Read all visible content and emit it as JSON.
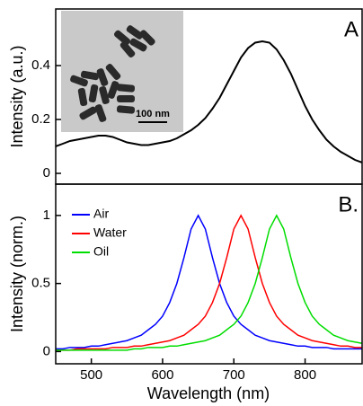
{
  "chart_data": [
    {
      "type": "line",
      "panel_label": "A",
      "ylabel": "Intensity (a.u.)",
      "inset_scale_label": "100 nm",
      "xlim": [
        450,
        880
      ],
      "ylim": [
        -0.04,
        0.61
      ],
      "yticks": [
        0,
        0.2,
        0.4
      ],
      "x": [
        450,
        460,
        470,
        480,
        490,
        500,
        510,
        520,
        530,
        540,
        550,
        560,
        570,
        580,
        590,
        600,
        610,
        620,
        630,
        640,
        650,
        660,
        670,
        680,
        690,
        700,
        710,
        720,
        730,
        740,
        750,
        760,
        770,
        780,
        790,
        800,
        810,
        820,
        830,
        840,
        850,
        860,
        870,
        880
      ],
      "series": [
        {
          "color": "#000000",
          "values": [
            0.1,
            0.11,
            0.12,
            0.125,
            0.13,
            0.135,
            0.14,
            0.14,
            0.135,
            0.125,
            0.115,
            0.11,
            0.105,
            0.105,
            0.11,
            0.115,
            0.12,
            0.13,
            0.145,
            0.16,
            0.18,
            0.205,
            0.24,
            0.28,
            0.33,
            0.38,
            0.43,
            0.465,
            0.485,
            0.49,
            0.485,
            0.46,
            0.42,
            0.37,
            0.31,
            0.25,
            0.2,
            0.16,
            0.125,
            0.1,
            0.08,
            0.065,
            0.05,
            0.04
          ]
        }
      ]
    },
    {
      "type": "line",
      "panel_label": "B.",
      "xlabel": "Wavelength (nm)",
      "ylabel": "Intensity (norm.)",
      "xlim": [
        450,
        880
      ],
      "ylim": [
        -0.09,
        1.23
      ],
      "xticks": [
        500,
        600,
        700,
        800
      ],
      "yticks": [
        0,
        0.5,
        1
      ],
      "x": [
        450,
        460,
        470,
        480,
        490,
        500,
        510,
        520,
        530,
        540,
        550,
        560,
        570,
        580,
        590,
        600,
        610,
        620,
        630,
        640,
        650,
        660,
        670,
        680,
        690,
        700,
        710,
        720,
        730,
        740,
        750,
        760,
        770,
        780,
        790,
        800,
        810,
        820,
        830,
        840,
        850,
        860,
        870,
        880
      ],
      "series": [
        {
          "name": "Air",
          "color": "#0000ff",
          "values": [
            0.02,
            0.02,
            0.03,
            0.03,
            0.03,
            0.04,
            0.04,
            0.05,
            0.06,
            0.07,
            0.08,
            0.1,
            0.12,
            0.16,
            0.2,
            0.26,
            0.36,
            0.5,
            0.69,
            0.9,
            1,
            0.9,
            0.69,
            0.5,
            0.36,
            0.26,
            0.2,
            0.16,
            0.12,
            0.1,
            0.08,
            0.07,
            0.06,
            0.05,
            0.04,
            0.04,
            0.03,
            0.03,
            0.03,
            0.02,
            0.02,
            0.02,
            0.02,
            0.02
          ]
        },
        {
          "name": "Water",
          "color": "#ff0000",
          "values": [
            0.01,
            0.01,
            0.01,
            0.02,
            0.02,
            0.02,
            0.02,
            0.02,
            0.03,
            0.03,
            0.03,
            0.04,
            0.04,
            0.05,
            0.06,
            0.07,
            0.08,
            0.1,
            0.12,
            0.16,
            0.2,
            0.26,
            0.36,
            0.5,
            0.69,
            0.9,
            1,
            0.9,
            0.69,
            0.5,
            0.36,
            0.26,
            0.2,
            0.16,
            0.12,
            0.1,
            0.08,
            0.07,
            0.06,
            0.05,
            0.04,
            0.04,
            0.03,
            0.03
          ]
        },
        {
          "name": "Oil",
          "color": "#00dd00",
          "values": [
            0.01,
            0.01,
            0.01,
            0.01,
            0.01,
            0.01,
            0.01,
            0.01,
            0.01,
            0.01,
            0.01,
            0.02,
            0.02,
            0.03,
            0.03,
            0.03,
            0.04,
            0.04,
            0.05,
            0.06,
            0.07,
            0.08,
            0.1,
            0.12,
            0.16,
            0.2,
            0.26,
            0.36,
            0.5,
            0.69,
            0.9,
            1,
            0.9,
            0.69,
            0.5,
            0.36,
            0.26,
            0.2,
            0.16,
            0.12,
            0.1,
            0.08,
            0.07,
            0.06
          ]
        }
      ]
    }
  ]
}
